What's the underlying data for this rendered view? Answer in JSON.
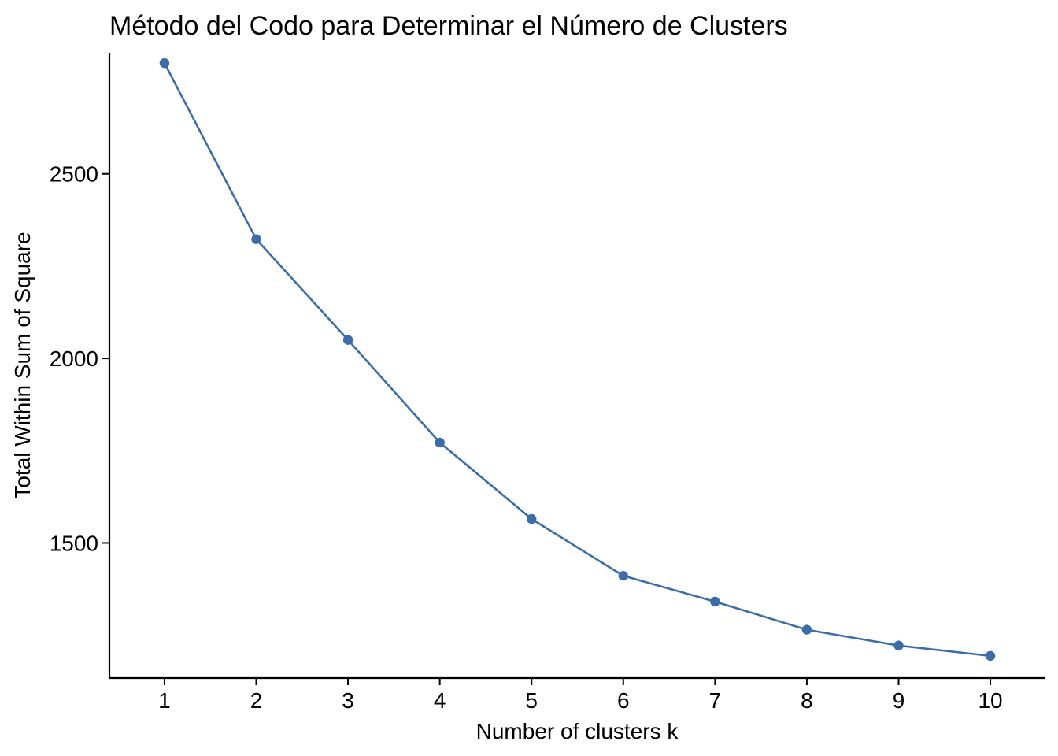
{
  "chart_data": {
    "type": "line",
    "title": "Método del Codo para Determinar el Número de Clusters",
    "xlabel": "Number of clusters k",
    "ylabel": "Total Within Sum of Square",
    "x": [
      1,
      2,
      3,
      4,
      5,
      6,
      7,
      8,
      9,
      10
    ],
    "xticks": [
      "1",
      "2",
      "3",
      "4",
      "5",
      "6",
      "7",
      "8",
      "9",
      "10"
    ],
    "yticks": [
      "1500",
      "2000",
      "2500"
    ],
    "ytick_values": [
      1500,
      2000,
      2500
    ],
    "xlim": [
      0.4,
      10.6
    ],
    "ylim": [
      1134,
      2828
    ],
    "series": [
      {
        "values": [
          2800,
          2323,
          2050,
          1772,
          1565,
          1411,
          1341,
          1265,
          1222,
          1194
        ],
        "color": "#3b6ea8"
      }
    ],
    "grid": false,
    "legend": "none",
    "markers": true
  }
}
